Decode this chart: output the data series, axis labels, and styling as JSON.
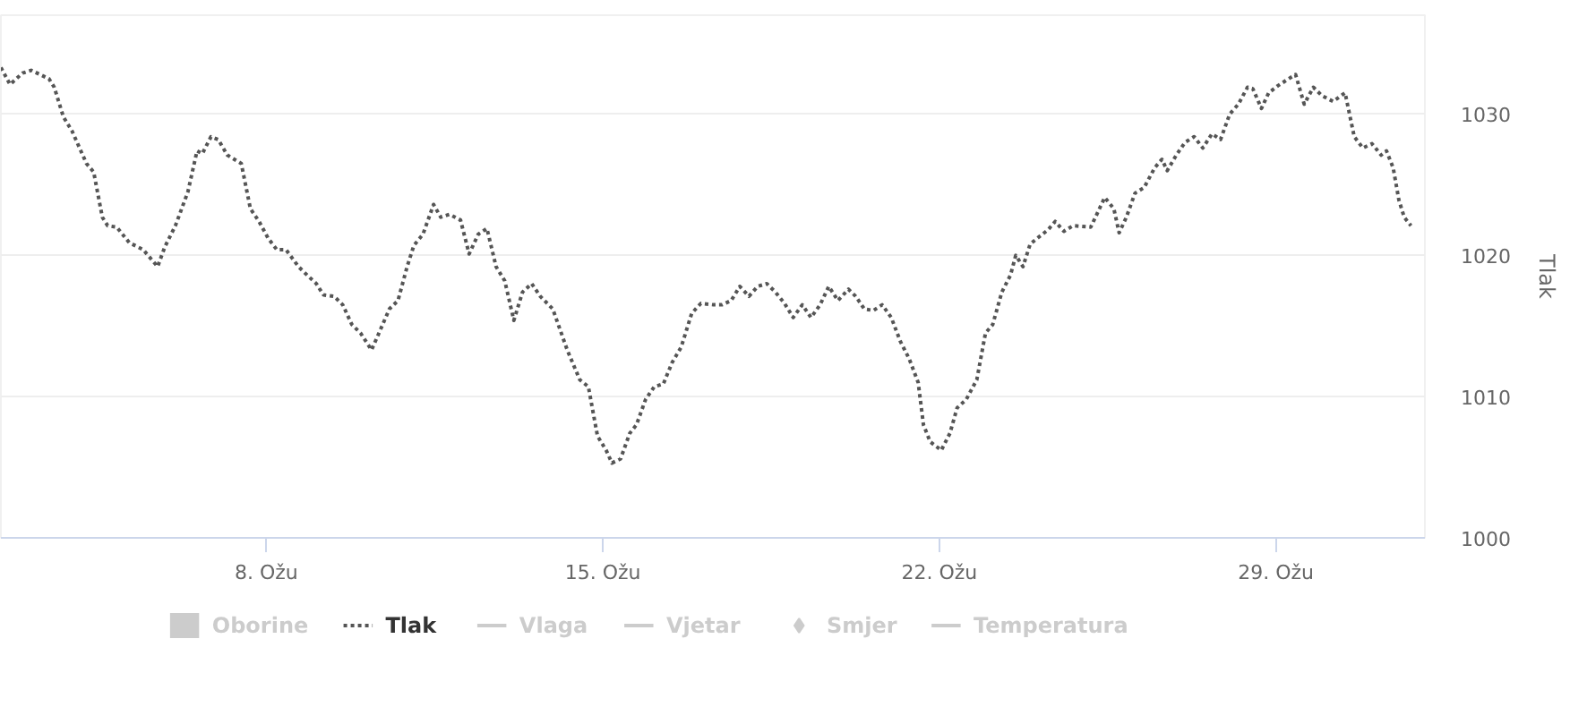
{
  "chart_data": {
    "type": "line",
    "ylabel": "Tlak",
    "xlim": [
      2.48,
      32.1
    ],
    "ylim": [
      1000,
      1037
    ],
    "xticks": [
      {
        "value": 8,
        "label": "8. Ožu"
      },
      {
        "value": 15,
        "label": "15. Ožu"
      },
      {
        "value": 22,
        "label": "22. Ožu"
      },
      {
        "value": 29,
        "label": "29. Ožu"
      }
    ],
    "yticks": [
      1000,
      1010,
      1020,
      1030
    ],
    "grid": "y",
    "legend": "bottom",
    "series": [
      {
        "name": "Oborine",
        "type": "bar",
        "color": "#cccccc"
      },
      {
        "name": "Tlak",
        "color": "#555555",
        "line_style": "dotted",
        "x": [
          2.48,
          2.67,
          2.93,
          3.11,
          3.48,
          3.59,
          3.78,
          3.96,
          4.26,
          4.41,
          4.59,
          4.7,
          4.89,
          5.15,
          5.44,
          5.74,
          5.89,
          6.11,
          6.37,
          6.56,
          6.67,
          6.85,
          7.0,
          7.19,
          7.48,
          7.67,
          7.85,
          8.04,
          8.22,
          8.41,
          8.67,
          8.85,
          9.04,
          9.19,
          9.41,
          9.59,
          9.78,
          9.96,
          10.19,
          10.37,
          10.56,
          10.74,
          10.93,
          11.07,
          11.26,
          11.48,
          11.63,
          11.81,
          12.04,
          12.22,
          12.41,
          12.59,
          12.78,
          12.96,
          13.15,
          13.33,
          13.52,
          13.7,
          13.96,
          14.26,
          14.52,
          14.7,
          14.89,
          15.07,
          15.19,
          15.37,
          15.56,
          15.7,
          15.89,
          16.07,
          16.26,
          16.44,
          16.63,
          16.85,
          17.04,
          17.3,
          17.48,
          17.67,
          17.85,
          18.04,
          18.22,
          18.41,
          18.59,
          18.78,
          18.96,
          19.15,
          19.33,
          19.52,
          19.7,
          19.89,
          20.11,
          20.26,
          20.44,
          20.63,
          20.81,
          21.0,
          21.19,
          21.37,
          21.56,
          21.67,
          21.81,
          22.04,
          22.22,
          22.37,
          22.56,
          22.78,
          22.96,
          23.11,
          23.3,
          23.48,
          23.59,
          23.74,
          23.89,
          24.07,
          24.26,
          24.41,
          24.59,
          24.78,
          25.15,
          25.33,
          25.44,
          25.63,
          25.74,
          25.89,
          26.07,
          26.26,
          26.48,
          26.63,
          26.74,
          26.93,
          27.11,
          27.3,
          27.48,
          27.67,
          27.85,
          28.04,
          28.22,
          28.41,
          28.52,
          28.7,
          28.85,
          29.04,
          29.22,
          29.41,
          29.59,
          29.78,
          29.96,
          30.19,
          30.44,
          30.63,
          30.81,
          31.0,
          31.19,
          31.3,
          31.44,
          31.56,
          31.67,
          31.81
        ],
        "values": [
          1033.3,
          1032.1,
          1032.9,
          1033.1,
          1032.5,
          1031.9,
          1029.8,
          1028.8,
          1026.5,
          1025.9,
          1022.7,
          1022.1,
          1022.0,
          1020.9,
          1020.4,
          1019.2,
          1020.6,
          1022.1,
          1024.5,
          1027.4,
          1027.2,
          1028.4,
          1028.2,
          1027.1,
          1026.5,
          1023.3,
          1022.4,
          1021.2,
          1020.4,
          1020.4,
          1019.2,
          1018.6,
          1018.0,
          1017.2,
          1017.1,
          1016.5,
          1015.1,
          1014.5,
          1013.3,
          1014.7,
          1016.2,
          1016.8,
          1019.2,
          1020.7,
          1021.5,
          1023.6,
          1022.7,
          1022.9,
          1022.5,
          1020.1,
          1021.5,
          1021.9,
          1019.2,
          1018.2,
          1015.4,
          1017.4,
          1018.0,
          1017.1,
          1016.2,
          1013.3,
          1011.2,
          1010.7,
          1007.2,
          1006.2,
          1005.3,
          1005.6,
          1007.4,
          1008.0,
          1009.8,
          1010.7,
          1010.9,
          1012.4,
          1013.5,
          1015.9,
          1016.6,
          1016.5,
          1016.5,
          1016.8,
          1017.8,
          1017.1,
          1017.8,
          1018.0,
          1017.4,
          1016.6,
          1015.6,
          1016.5,
          1015.6,
          1016.5,
          1017.8,
          1016.8,
          1017.6,
          1017.1,
          1016.2,
          1016.1,
          1016.5,
          1015.6,
          1013.9,
          1012.7,
          1011.0,
          1008.0,
          1006.8,
          1006.2,
          1007.4,
          1009.2,
          1009.8,
          1011.2,
          1014.5,
          1015.1,
          1017.4,
          1018.6,
          1020.0,
          1019.2,
          1020.8,
          1021.3,
          1021.8,
          1022.4,
          1021.7,
          1022.1,
          1022.0,
          1023.3,
          1024.1,
          1023.3,
          1021.6,
          1022.7,
          1024.4,
          1024.8,
          1026.2,
          1026.8,
          1026.0,
          1027.1,
          1028.0,
          1028.4,
          1027.6,
          1028.6,
          1028.2,
          1030.0,
          1030.7,
          1031.9,
          1031.8,
          1030.4,
          1031.5,
          1032.0,
          1032.4,
          1032.8,
          1030.7,
          1031.9,
          1031.3,
          1030.9,
          1031.5,
          1028.4,
          1027.6,
          1027.9,
          1027.1,
          1027.4,
          1026.2,
          1023.9,
          1022.7,
          1022.1
        ]
      },
      {
        "name": "Vlaga",
        "type": "line",
        "color": "#cccccc"
      },
      {
        "name": "Vjetar",
        "type": "line",
        "color": "#cccccc"
      },
      {
        "name": "Smjer",
        "type": "scatter",
        "marker": "diamond",
        "color": "#cccccc"
      },
      {
        "name": "Temperatura",
        "type": "line",
        "color": "#cccccc"
      }
    ]
  }
}
